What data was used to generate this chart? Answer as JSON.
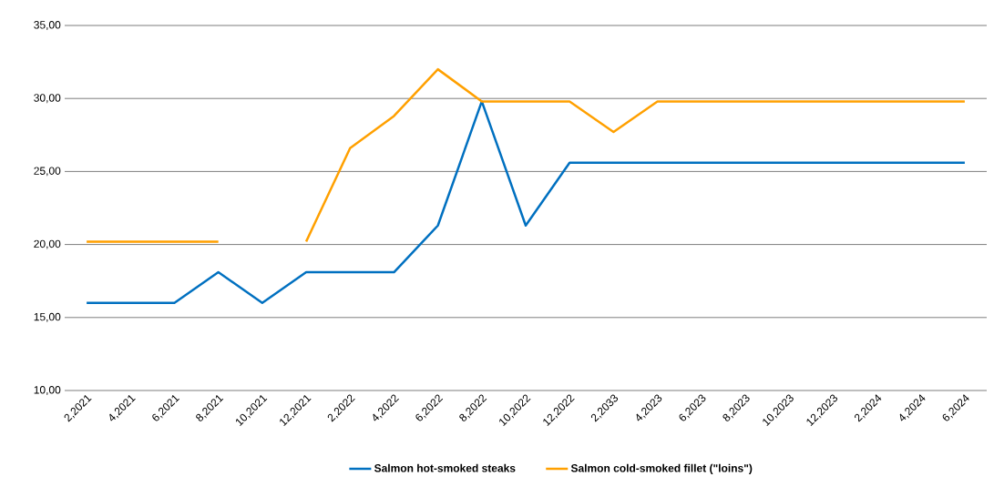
{
  "chart_data": {
    "type": "line",
    "categories": [
      "2,2021",
      "4,2021",
      "6,2021",
      "8,2021",
      "10,2021",
      "12,2021",
      "2,2022",
      "4,2022",
      "6,2022",
      "8,2022",
      "10,2022",
      "12,2022",
      "2,2033",
      "4,2023",
      "6,2023",
      "8,2023",
      "10,2023",
      "12,2023",
      "2,2024",
      "4,2024",
      "6,2024"
    ],
    "series": [
      {
        "name": "Salmon hot-smoked steaks",
        "color": "#0070c0",
        "values": [
          16.0,
          16.0,
          16.0,
          18.1,
          16.0,
          18.1,
          18.1,
          18.1,
          21.3,
          29.8,
          21.3,
          25.6,
          25.6,
          25.6,
          25.6,
          25.6,
          25.6,
          25.6,
          25.6,
          25.6,
          25.6
        ]
      },
      {
        "name": "Salmon cold-smoked fillet (\"loins\")",
        "color": "#ffa000",
        "values": [
          20.2,
          20.2,
          20.2,
          20.2,
          null,
          20.2,
          26.6,
          28.8,
          32.0,
          29.8,
          29.8,
          29.8,
          27.7,
          29.8,
          29.8,
          29.8,
          29.8,
          29.8,
          29.8,
          29.8,
          29.8
        ]
      }
    ],
    "ylim": [
      10,
      35
    ],
    "yticks": [
      {
        "value": 10,
        "label": "10,00"
      },
      {
        "value": 15,
        "label": "15,00"
      },
      {
        "value": 20,
        "label": "20,00"
      },
      {
        "value": 25,
        "label": "25,00"
      },
      {
        "value": 30,
        "label": "30,00"
      },
      {
        "value": 35,
        "label": "35,00"
      }
    ],
    "grid": "y",
    "legend": "bottom",
    "marker": "none",
    "line_style": "solid"
  }
}
